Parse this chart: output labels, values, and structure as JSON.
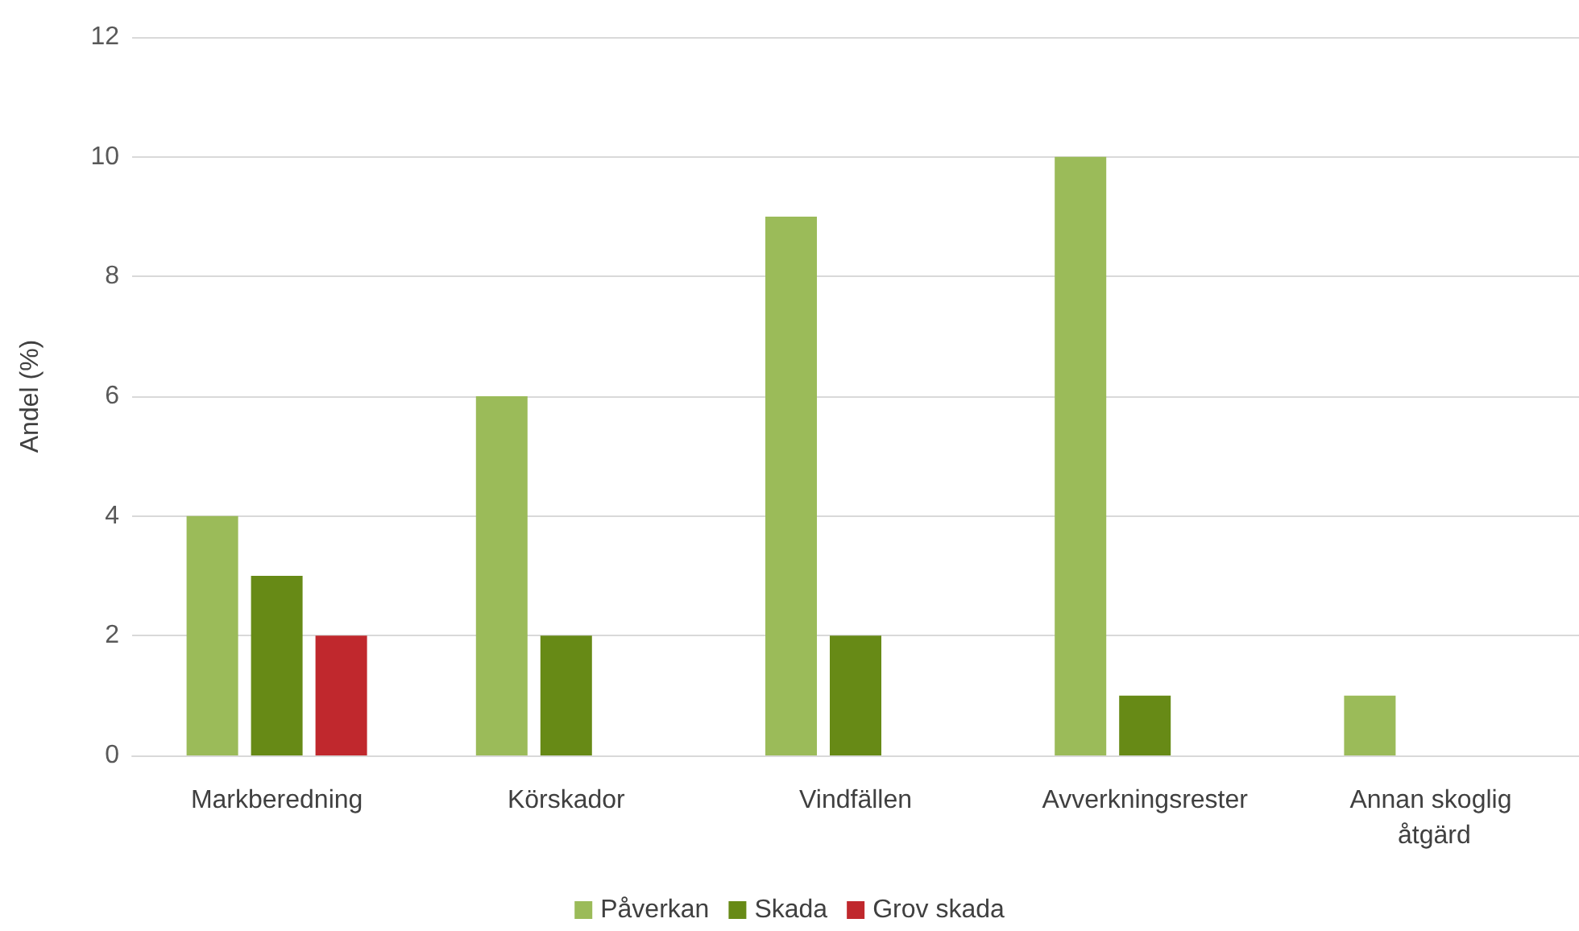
{
  "chart_data": {
    "type": "bar",
    "ylabel": "Andel (%)",
    "categories": [
      "Markberedning",
      "Körskador",
      "Vindfällen",
      "Avverkningsrester",
      "Annan skoglig åtgärd"
    ],
    "series": [
      {
        "name": "Påverkan",
        "color": "#9bbb59",
        "values": [
          4,
          6,
          9,
          10,
          1
        ]
      },
      {
        "name": "Skada",
        "color": "#678a16",
        "values": [
          3,
          2,
          2,
          1,
          0
        ]
      },
      {
        "name": "Grov skada",
        "color": "#c0282d",
        "values": [
          2,
          0,
          0,
          0,
          0
        ]
      }
    ],
    "ylim": [
      0,
      12
    ],
    "yticks": [
      0,
      2,
      4,
      6,
      8,
      10,
      12
    ],
    "grid": "y",
    "legend": "bottom"
  }
}
